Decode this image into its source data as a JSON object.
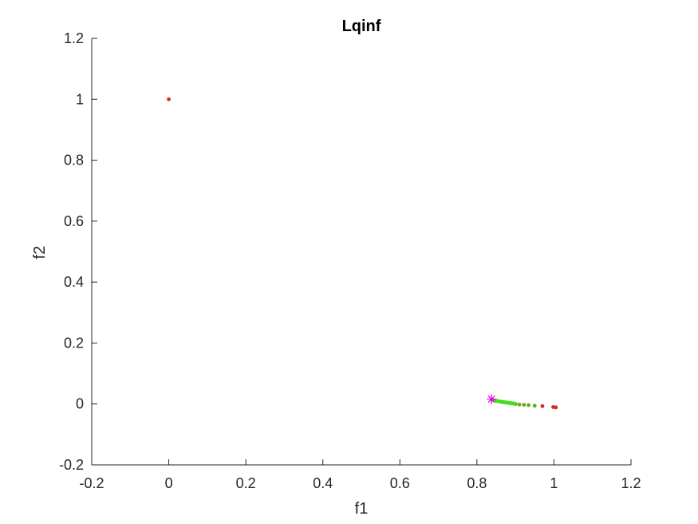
{
  "chart_data": {
    "type": "scatter",
    "title": "Lqinf",
    "xlabel": "f1",
    "ylabel": "f2",
    "xlim": [
      -0.2,
      1.2
    ],
    "ylim": [
      -0.2,
      1.2
    ],
    "xticks": [
      "-0.2",
      "0",
      "0.2",
      "0.4",
      "0.6",
      "0.8",
      "1",
      "1.2"
    ],
    "yticks": [
      "-0.2",
      "0",
      "0.2",
      "0.4",
      "0.6",
      "0.8",
      "1",
      "1.2"
    ],
    "xtick_values": [
      -0.2,
      0,
      0.2,
      0.4,
      0.6,
      0.8,
      1,
      1.2
    ],
    "ytick_values": [
      -0.2,
      0,
      0.2,
      0.4,
      0.6,
      0.8,
      1,
      1.2
    ],
    "grid": false,
    "series": [
      {
        "color": "#d42a1e",
        "marker": "dot",
        "points": [
          [
            0.0,
            1.0
          ],
          [
            0.97,
            -0.007
          ],
          [
            0.998,
            -0.01
          ],
          [
            1.005,
            -0.011
          ]
        ]
      },
      {
        "color": "#66aa22",
        "marker": "dot",
        "points": [
          [
            0.9,
            0.0
          ],
          [
            0.91,
            -0.002
          ],
          [
            0.922,
            -0.003
          ],
          [
            0.934,
            -0.004
          ],
          [
            0.95,
            -0.006
          ]
        ]
      },
      {
        "color": "#44dd22",
        "marker": "dot",
        "points": [
          [
            0.84,
            0.013
          ],
          [
            0.843,
            0.012
          ],
          [
            0.846,
            0.011
          ],
          [
            0.849,
            0.01
          ],
          [
            0.852,
            0.01
          ],
          [
            0.855,
            0.009
          ],
          [
            0.858,
            0.008
          ],
          [
            0.861,
            0.008
          ],
          [
            0.864,
            0.007
          ],
          [
            0.867,
            0.006
          ],
          [
            0.87,
            0.006
          ],
          [
            0.873,
            0.005
          ],
          [
            0.876,
            0.005
          ],
          [
            0.879,
            0.004
          ],
          [
            0.882,
            0.004
          ],
          [
            0.885,
            0.003
          ],
          [
            0.888,
            0.003
          ],
          [
            0.891,
            0.002
          ],
          [
            0.894,
            0.002
          ],
          [
            0.897,
            0.001
          ]
        ]
      },
      {
        "color": "#e600e6",
        "marker": "asterisk",
        "points": [
          [
            0.838,
            0.016
          ]
        ]
      }
    ]
  }
}
